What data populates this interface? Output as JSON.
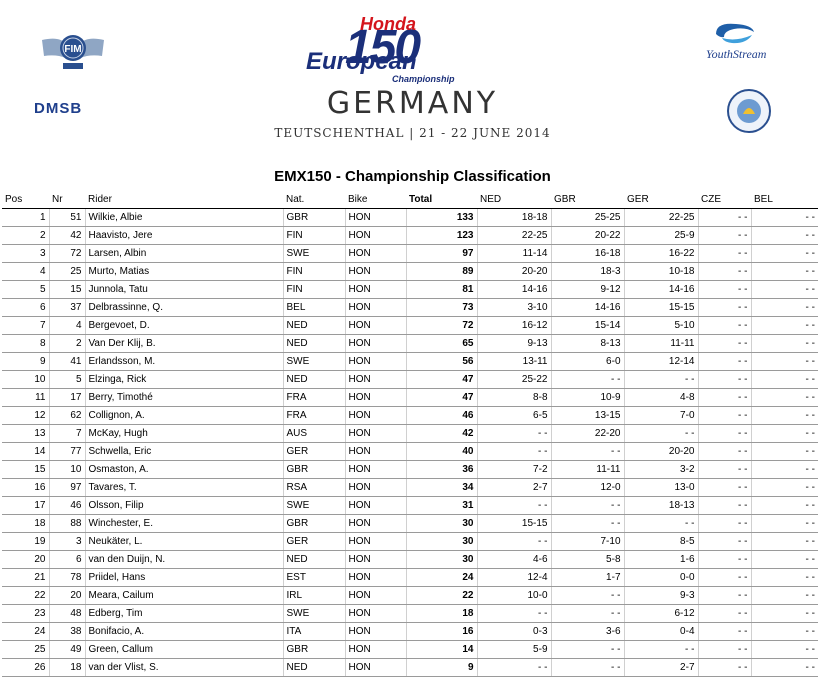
{
  "header": {
    "logo_left": "FIM",
    "dmsb": "DMSB",
    "brand_honda": "Honda",
    "brand_number": "150",
    "brand_european": "European",
    "brand_championship": "Championship",
    "event_country": "GERMANY",
    "event_details": "TEUTSCHENTHAL | 21 - 22 JUNE 2014",
    "sponsor": "YouthStream"
  },
  "classification_title": "EMX150 - Championship Classification",
  "columns": [
    "Pos",
    "Nr",
    "Rider",
    "Nat.",
    "Bike",
    "Total",
    "NED",
    "GBR",
    "GER",
    "CZE",
    "BEL"
  ],
  "rows": [
    {
      "pos": "1",
      "nr": "51",
      "rider": "Wilkie, Albie",
      "nat": "GBR",
      "bike": "HON",
      "total": "133",
      "ned": "18-18",
      "gbr": "25-25",
      "ger": "22-25",
      "cze": "- -",
      "bel": "- -"
    },
    {
      "pos": "2",
      "nr": "42",
      "rider": "Haavisto, Jere",
      "nat": "FIN",
      "bike": "HON",
      "total": "123",
      "ned": "22-25",
      "gbr": "20-22",
      "ger": "25-9",
      "cze": "- -",
      "bel": "- -"
    },
    {
      "pos": "3",
      "nr": "72",
      "rider": "Larsen, Albin",
      "nat": "SWE",
      "bike": "HON",
      "total": "97",
      "ned": "11-14",
      "gbr": "16-18",
      "ger": "16-22",
      "cze": "- -",
      "bel": "- -"
    },
    {
      "pos": "4",
      "nr": "25",
      "rider": "Murto, Matias",
      "nat": "FIN",
      "bike": "HON",
      "total": "89",
      "ned": "20-20",
      "gbr": "18-3",
      "ger": "10-18",
      "cze": "- -",
      "bel": "- -"
    },
    {
      "pos": "5",
      "nr": "15",
      "rider": "Junnola, Tatu",
      "nat": "FIN",
      "bike": "HON",
      "total": "81",
      "ned": "14-16",
      "gbr": "9-12",
      "ger": "14-16",
      "cze": "- -",
      "bel": "- -"
    },
    {
      "pos": "6",
      "nr": "37",
      "rider": "Delbrassinne, Q.",
      "nat": "BEL",
      "bike": "HON",
      "total": "73",
      "ned": "3-10",
      "gbr": "14-16",
      "ger": "15-15",
      "cze": "- -",
      "bel": "- -"
    },
    {
      "pos": "7",
      "nr": "4",
      "rider": "Bergevoet, D.",
      "nat": "NED",
      "bike": "HON",
      "total": "72",
      "ned": "16-12",
      "gbr": "15-14",
      "ger": "5-10",
      "cze": "- -",
      "bel": "- -"
    },
    {
      "pos": "8",
      "nr": "2",
      "rider": "Van Der Klij, B.",
      "nat": "NED",
      "bike": "HON",
      "total": "65",
      "ned": "9-13",
      "gbr": "8-13",
      "ger": "11-11",
      "cze": "- -",
      "bel": "- -"
    },
    {
      "pos": "9",
      "nr": "41",
      "rider": "Erlandsson, M.",
      "nat": "SWE",
      "bike": "HON",
      "total": "56",
      "ned": "13-11",
      "gbr": "6-0",
      "ger": "12-14",
      "cze": "- -",
      "bel": "- -"
    },
    {
      "pos": "10",
      "nr": "5",
      "rider": "Elzinga, Rick",
      "nat": "NED",
      "bike": "HON",
      "total": "47",
      "ned": "25-22",
      "gbr": "- -",
      "ger": "- -",
      "cze": "- -",
      "bel": "- -"
    },
    {
      "pos": "11",
      "nr": "17",
      "rider": "Berry, Timothé",
      "nat": "FRA",
      "bike": "HON",
      "total": "47",
      "ned": "8-8",
      "gbr": "10-9",
      "ger": "4-8",
      "cze": "- -",
      "bel": "- -"
    },
    {
      "pos": "12",
      "nr": "62",
      "rider": "Collignon, A.",
      "nat": "FRA",
      "bike": "HON",
      "total": "46",
      "ned": "6-5",
      "gbr": "13-15",
      "ger": "7-0",
      "cze": "- -",
      "bel": "- -"
    },
    {
      "pos": "13",
      "nr": "7",
      "rider": "McKay, Hugh",
      "nat": "AUS",
      "bike": "HON",
      "total": "42",
      "ned": "- -",
      "gbr": "22-20",
      "ger": "- -",
      "cze": "- -",
      "bel": "- -"
    },
    {
      "pos": "14",
      "nr": "77",
      "rider": "Schwella, Eric",
      "nat": "GER",
      "bike": "HON",
      "total": "40",
      "ned": "- -",
      "gbr": "- -",
      "ger": "20-20",
      "cze": "- -",
      "bel": "- -"
    },
    {
      "pos": "15",
      "nr": "10",
      "rider": "Osmaston, A.",
      "nat": "GBR",
      "bike": "HON",
      "total": "36",
      "ned": "7-2",
      "gbr": "11-11",
      "ger": "3-2",
      "cze": "- -",
      "bel": "- -"
    },
    {
      "pos": "16",
      "nr": "97",
      "rider": "Tavares, T.",
      "nat": "RSA",
      "bike": "HON",
      "total": "34",
      "ned": "2-7",
      "gbr": "12-0",
      "ger": "13-0",
      "cze": "- -",
      "bel": "- -"
    },
    {
      "pos": "17",
      "nr": "46",
      "rider": "Olsson, Filip",
      "nat": "SWE",
      "bike": "HON",
      "total": "31",
      "ned": "- -",
      "gbr": "- -",
      "ger": "18-13",
      "cze": "- -",
      "bel": "- -"
    },
    {
      "pos": "18",
      "nr": "88",
      "rider": "Winchester, E.",
      "nat": "GBR",
      "bike": "HON",
      "total": "30",
      "ned": "15-15",
      "gbr": "- -",
      "ger": "- -",
      "cze": "- -",
      "bel": "- -"
    },
    {
      "pos": "19",
      "nr": "3",
      "rider": "Neukäter, L.",
      "nat": "GER",
      "bike": "HON",
      "total": "30",
      "ned": "- -",
      "gbr": "7-10",
      "ger": "8-5",
      "cze": "- -",
      "bel": "- -"
    },
    {
      "pos": "20",
      "nr": "6",
      "rider": "van den Duijn, N.",
      "nat": "NED",
      "bike": "HON",
      "total": "30",
      "ned": "4-6",
      "gbr": "5-8",
      "ger": "1-6",
      "cze": "- -",
      "bel": "- -"
    },
    {
      "pos": "21",
      "nr": "78",
      "rider": "Priidel, Hans",
      "nat": "EST",
      "bike": "HON",
      "total": "24",
      "ned": "12-4",
      "gbr": "1-7",
      "ger": "0-0",
      "cze": "- -",
      "bel": "- -"
    },
    {
      "pos": "22",
      "nr": "20",
      "rider": "Meara, Cailum",
      "nat": "IRL",
      "bike": "HON",
      "total": "22",
      "ned": "10-0",
      "gbr": "- -",
      "ger": "9-3",
      "cze": "- -",
      "bel": "- -"
    },
    {
      "pos": "23",
      "nr": "48",
      "rider": "Edberg, Tim",
      "nat": "SWE",
      "bike": "HON",
      "total": "18",
      "ned": "- -",
      "gbr": "- -",
      "ger": "6-12",
      "cze": "- -",
      "bel": "- -"
    },
    {
      "pos": "24",
      "nr": "38",
      "rider": "Bonifacio, A.",
      "nat": "ITA",
      "bike": "HON",
      "total": "16",
      "ned": "0-3",
      "gbr": "3-6",
      "ger": "0-4",
      "cze": "- -",
      "bel": "- -"
    },
    {
      "pos": "25",
      "nr": "49",
      "rider": "Green, Callum",
      "nat": "GBR",
      "bike": "HON",
      "total": "14",
      "ned": "5-9",
      "gbr": "- -",
      "ger": "- -",
      "cze": "- -",
      "bel": "- -"
    },
    {
      "pos": "26",
      "nr": "18",
      "rider": "van der Vlist, S.",
      "nat": "NED",
      "bike": "HON",
      "total": "9",
      "ned": "- -",
      "gbr": "- -",
      "ger": "2-7",
      "cze": "- -",
      "bel": "- -"
    }
  ]
}
